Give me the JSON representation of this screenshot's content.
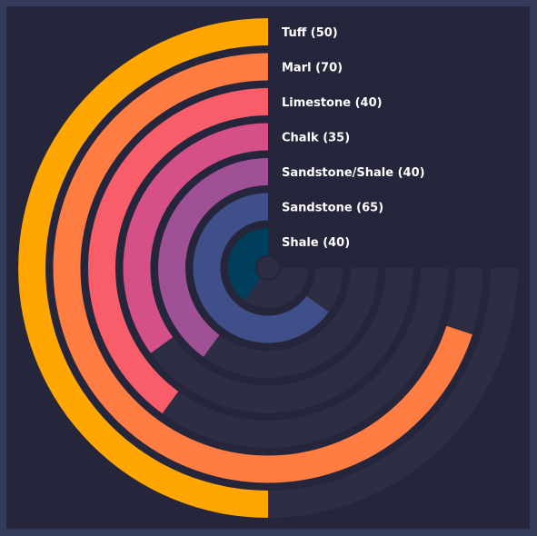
{
  "chart_data": {
    "type": "radial-bar",
    "max_value": 100,
    "series": [
      {
        "name": "Tuff",
        "value": 50,
        "label": "Tuff (50)",
        "color": "#ffa600"
      },
      {
        "name": "Marl",
        "value": 70,
        "label": "Marl (70)",
        "color": "#ff7c43"
      },
      {
        "name": "Limestone",
        "value": 40,
        "label": "Limestone (40)",
        "color": "#f95d6a"
      },
      {
        "name": "Chalk",
        "value": 35,
        "label": "Chalk (35)",
        "color": "#d45087"
      },
      {
        "name": "Sandstone/Shale",
        "value": 40,
        "label": "Sandstone/Shale (40)",
        "color": "#a05195"
      },
      {
        "name": "Sandstone",
        "value": 65,
        "label": "Sandstone (65)",
        "color": "#3e4f8a"
      },
      {
        "name": "Shale",
        "value": 40,
        "label": "Shale (40)",
        "color": "#003f5c"
      }
    ],
    "background_color": "#25263b",
    "track_color": "#2d2e44",
    "frame_color": "#343a5a"
  }
}
